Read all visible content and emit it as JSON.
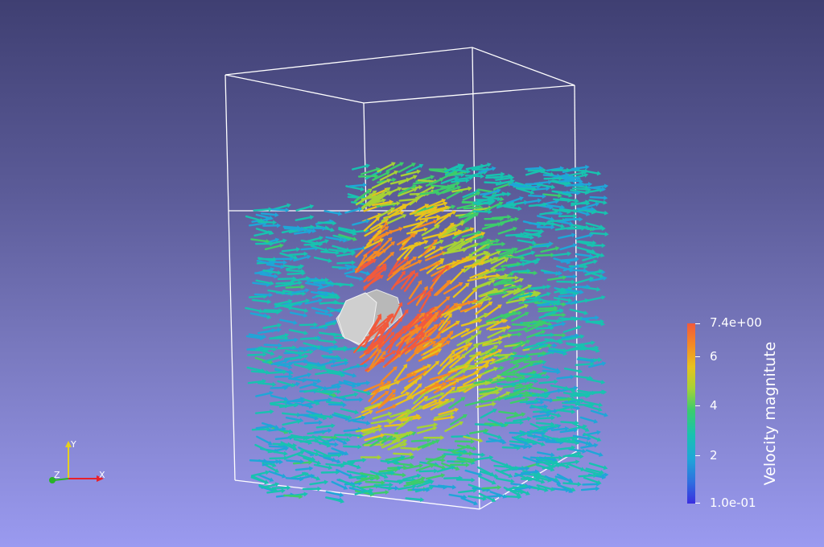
{
  "viewer": {
    "background_top": "#3f3f72",
    "background_bottom": "#9a9af0"
  },
  "colorbar": {
    "title": "Velocity magnitute",
    "max_label": "7.4e+00",
    "min_label": "1.0e-01",
    "tick_labels": [
      "6",
      "4",
      "2"
    ],
    "range": [
      0.1,
      7.4
    ]
  },
  "orientation_axes": {
    "x_label": "X",
    "y_label": "Y",
    "z_label": "Z",
    "x_color": "#e8202a",
    "y_color": "#e6d020",
    "z_color": "#28b428"
  },
  "scene": {
    "objects": [
      "bounding-box-outline",
      "velocity-glyphs",
      "cylinder-obstacle"
    ],
    "glyph_colormap": [
      "#3a2ee0",
      "#2f6fe0",
      "#1fa6d8",
      "#18c2b0",
      "#3ccc6c",
      "#a6d236",
      "#e8c21c",
      "#f48a24",
      "#f25a3c"
    ]
  }
}
